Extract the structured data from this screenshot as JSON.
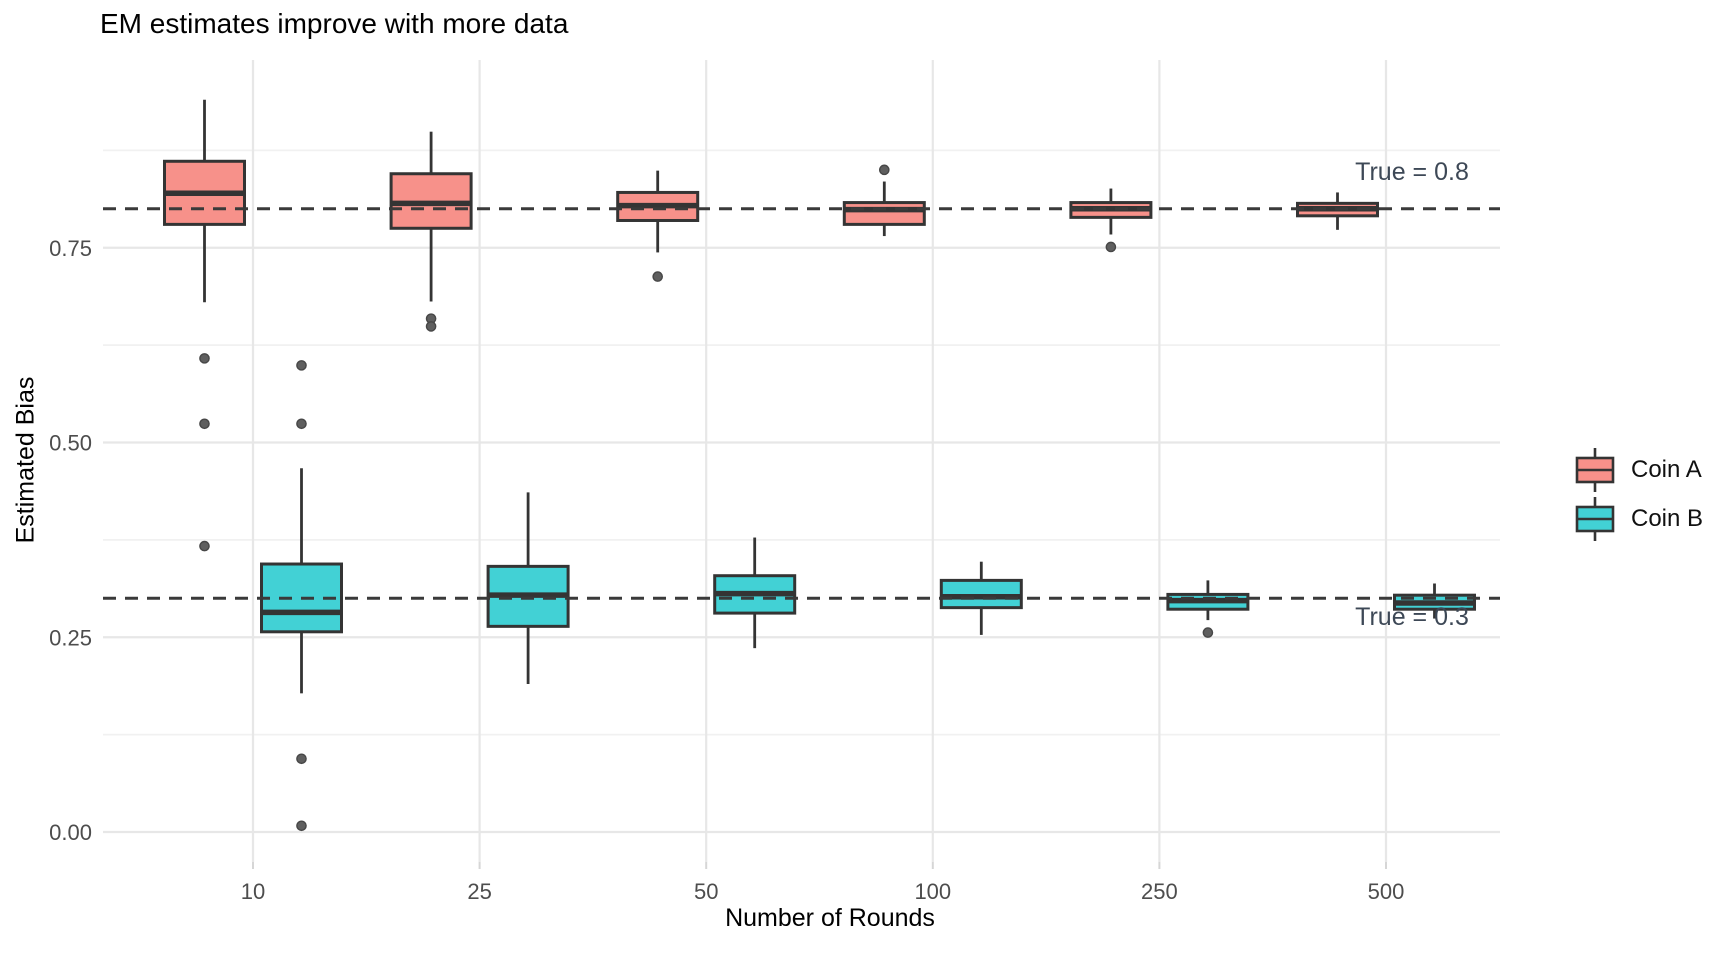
{
  "title": "EM estimates improve with more data",
  "y_axis": {
    "label": "Estimated Bias",
    "ticks": [
      "0.00",
      "0.25",
      "0.50",
      "0.75"
    ],
    "tick_values": [
      0,
      0.25,
      0.5,
      0.75
    ],
    "minor_tick_values": [
      0.125,
      0.375,
      0.625,
      0.875
    ]
  },
  "x_axis": {
    "label": "Number of Rounds",
    "ticks": [
      "10",
      "25",
      "50",
      "100",
      "250",
      "500"
    ]
  },
  "legend": {
    "items": [
      {
        "label": "Coin A",
        "color": "#F7918A"
      },
      {
        "label": "Coin B",
        "color": "#42D1D5"
      }
    ]
  },
  "annotations": [
    {
      "text": "True = 0.8",
      "value": 0.8
    },
    {
      "text": "True = 0.3",
      "value": 0.3
    }
  ],
  "colors": {
    "box_border": "#343434",
    "grid_major": "#E7E7E7",
    "grid_minor": "#F1F1F1",
    "reference_line": "#3A3A3A",
    "tick_label": "#4d4d4d",
    "outlier": "#5f5f5f"
  },
  "chart_data": {
    "type": "boxplot",
    "title": "EM estimates improve with more data",
    "xlabel": "Number of Rounds",
    "ylabel": "Estimated Bias",
    "categories": [
      "10",
      "25",
      "50",
      "100",
      "250",
      "500"
    ],
    "ylim": [
      -0.04,
      0.99
    ],
    "grid": "on",
    "legend_position": "right",
    "reference_lines": [
      0.8,
      0.3
    ],
    "series": [
      {
        "name": "Coin A",
        "color": "#F7918A",
        "true_value": 0.8,
        "boxes": [
          {
            "whisker_low": 0.68,
            "q1": 0.78,
            "median": 0.82,
            "q3": 0.861,
            "whisker_high": 0.94,
            "outliers": [
              0.608,
              0.524,
              0.367
            ]
          },
          {
            "whisker_low": 0.681,
            "q1": 0.775,
            "median": 0.807,
            "q3": 0.845,
            "whisker_high": 0.899,
            "outliers": [
              0.659,
              0.649
            ]
          },
          {
            "whisker_low": 0.744,
            "q1": 0.785,
            "median": 0.804,
            "q3": 0.821,
            "whisker_high": 0.849,
            "outliers": [
              0.713
            ]
          },
          {
            "whisker_low": 0.765,
            "q1": 0.78,
            "median": 0.799,
            "q3": 0.808,
            "whisker_high": 0.835,
            "outliers": [
              0.85
            ]
          },
          {
            "whisker_low": 0.767,
            "q1": 0.789,
            "median": 0.8,
            "q3": 0.808,
            "whisker_high": 0.826,
            "outliers": [
              0.751
            ]
          },
          {
            "whisker_low": 0.773,
            "q1": 0.791,
            "median": 0.8,
            "q3": 0.807,
            "whisker_high": 0.821,
            "outliers": []
          }
        ]
      },
      {
        "name": "Coin B",
        "color": "#42D1D5",
        "true_value": 0.3,
        "boxes": [
          {
            "whisker_low": 0.178,
            "q1": 0.257,
            "median": 0.282,
            "q3": 0.344,
            "whisker_high": 0.467,
            "outliers": [
              0.599,
              0.524,
              0.094,
              0.008
            ]
          },
          {
            "whisker_low": 0.19,
            "q1": 0.264,
            "median": 0.304,
            "q3": 0.341,
            "whisker_high": 0.436,
            "outliers": []
          },
          {
            "whisker_low": 0.236,
            "q1": 0.281,
            "median": 0.306,
            "q3": 0.329,
            "whisker_high": 0.378,
            "outliers": []
          },
          {
            "whisker_low": 0.253,
            "q1": 0.288,
            "median": 0.302,
            "q3": 0.323,
            "whisker_high": 0.347,
            "outliers": []
          },
          {
            "whisker_low": 0.272,
            "q1": 0.286,
            "median": 0.297,
            "q3": 0.305,
            "whisker_high": 0.323,
            "outliers": [
              0.256
            ]
          },
          {
            "whisker_low": 0.274,
            "q1": 0.286,
            "median": 0.294,
            "q3": 0.304,
            "whisker_high": 0.319,
            "outliers": []
          }
        ]
      }
    ]
  }
}
